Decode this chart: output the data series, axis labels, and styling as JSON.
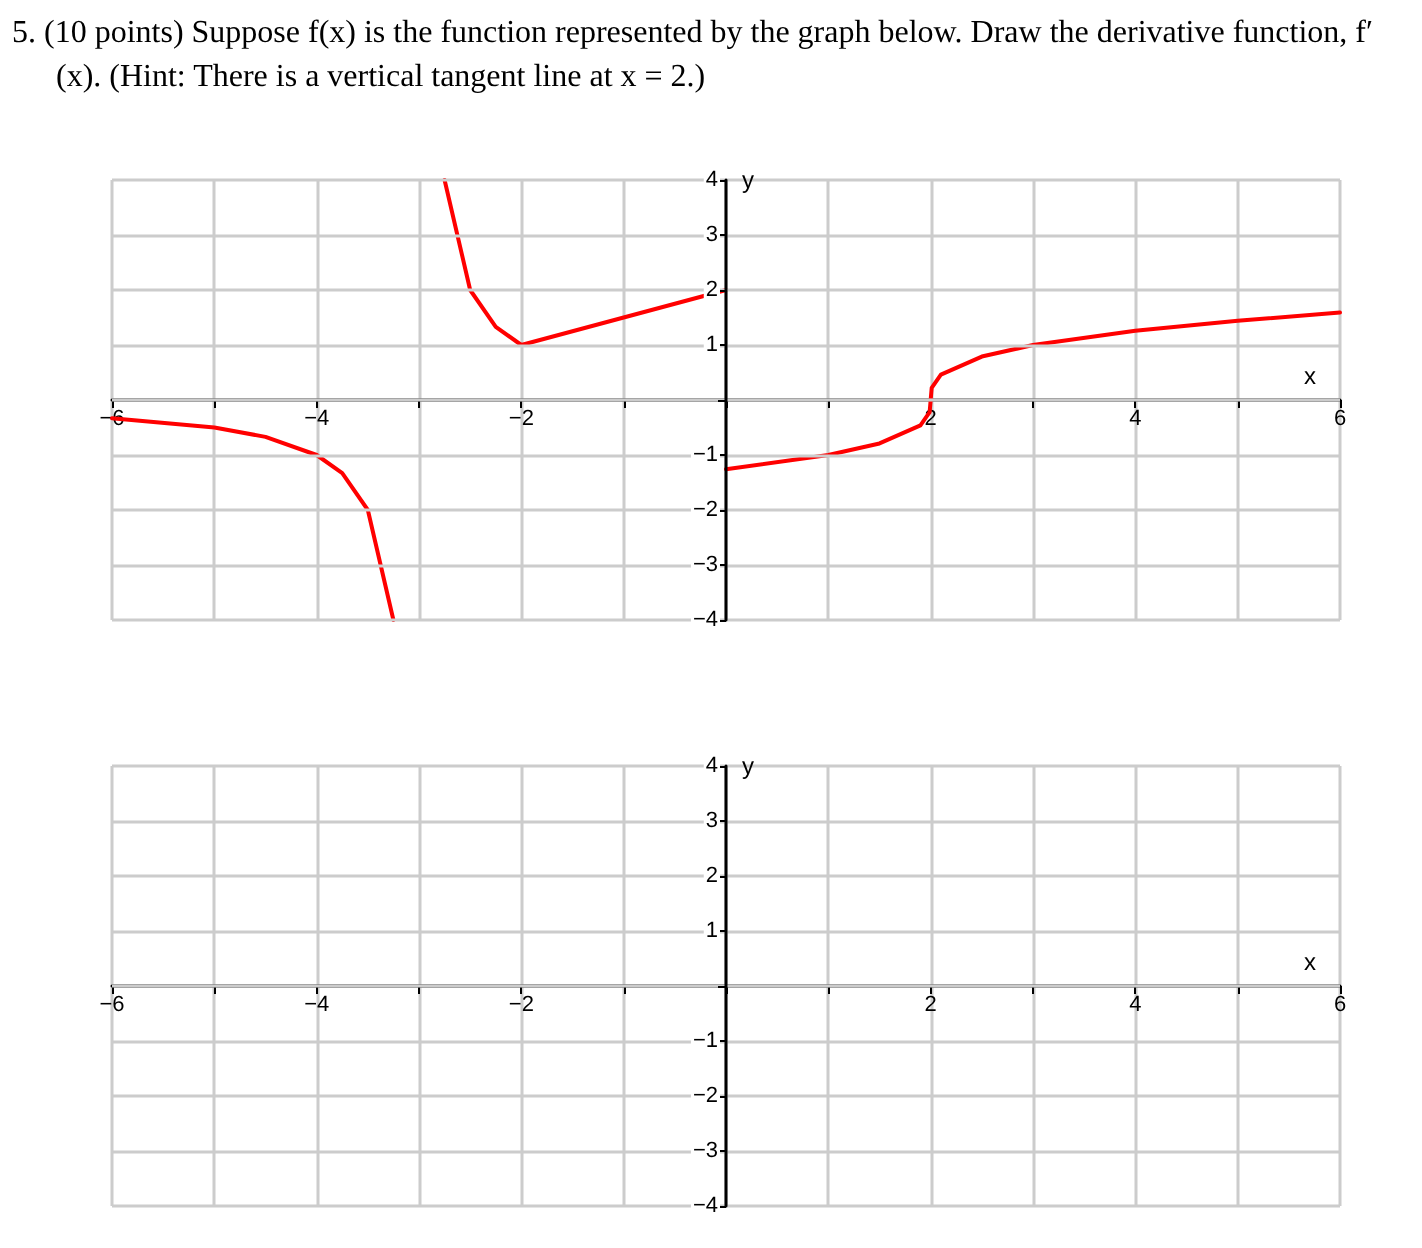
{
  "chart_data": [
    {
      "type": "line",
      "title": "5. (10 points) Suppose f(x) is the function represented by the graph below. Draw the derivative function, f′(x). (Hint: There is a vertical tangent line at x = 2.)",
      "xlabel": "x",
      "ylabel": "y",
      "xlim": [
        -6,
        6
      ],
      "ylim": [
        -4,
        4
      ],
      "xticks": [
        {
          "value": -6,
          "label": "−6"
        },
        {
          "value": -5,
          "label": null
        },
        {
          "value": -4,
          "label": "−4"
        },
        {
          "value": -3,
          "label": null
        },
        {
          "value": -2,
          "label": "−2"
        },
        {
          "value": -1,
          "label": null
        },
        {
          "value": 0,
          "label": null
        },
        {
          "value": 1,
          "label": null
        },
        {
          "value": 2,
          "label": "2"
        },
        {
          "value": 3,
          "label": null
        },
        {
          "value": 4,
          "label": "4"
        },
        {
          "value": 5,
          "label": null
        },
        {
          "value": 6,
          "label": "6"
        }
      ],
      "yticks": [
        {
          "value": -4,
          "label": "−4"
        },
        {
          "value": -3,
          "label": "−3"
        },
        {
          "value": -2,
          "label": "−2"
        },
        {
          "value": -1,
          "label": "−1"
        },
        {
          "value": 0,
          "label": null
        },
        1,
        2,
        3,
        4
      ],
      "grid": true,
      "marker": "none",
      "line_style": "solid",
      "series": [
        {
          "color": "#ff0000",
          "x": [
            -6,
            -5,
            -4.5,
            -4,
            -3.75,
            -3.5,
            -3.25
          ],
          "values": [
            -0.33,
            -0.5,
            -0.67,
            -1,
            -1.33,
            -2,
            -4
          ]
        },
        {
          "color": "#ff0000",
          "x": [
            -2.75,
            -2.5,
            -2.25,
            -2
          ],
          "values": [
            4,
            2,
            1.33,
            1
          ]
        },
        {
          "color": "#ff0000",
          "x": [
            -2,
            0
          ],
          "values": [
            1,
            2
          ]
        },
        {
          "color": "#ff0000",
          "x": [
            0,
            1,
            1.5,
            1.9,
            1.99,
            2,
            2.01,
            2.1,
            2.5,
            3,
            4,
            5,
            6
          ],
          "values": [
            -1.26,
            -1,
            -0.79,
            -0.46,
            -0.22,
            0,
            0.22,
            0.46,
            0.79,
            1,
            1.26,
            1.44,
            1.59
          ]
        }
      ]
    },
    {
      "type": "line",
      "xlabel": "x",
      "ylabel": "y",
      "xlim": [
        -6,
        6
      ],
      "ylim": [
        -4,
        4
      ],
      "xticks": [
        {
          "value": -6,
          "label": "−6"
        },
        {
          "value": -5,
          "label": null
        },
        {
          "value": -4,
          "label": "−4"
        },
        {
          "value": -3,
          "label": null
        },
        {
          "value": -2,
          "label": "−2"
        },
        {
          "value": -1,
          "label": null
        },
        {
          "value": 0,
          "label": null
        },
        {
          "value": 1,
          "label": null
        },
        {
          "value": 2,
          "label": "2"
        },
        {
          "value": 3,
          "label": null
        },
        {
          "value": 4,
          "label": "4"
        },
        {
          "value": 5,
          "label": null
        },
        {
          "value": 6,
          "label": "6"
        }
      ],
      "yticks": [
        {
          "value": -4,
          "label": "−4"
        },
        {
          "value": -3,
          "label": "−3"
        },
        {
          "value": -2,
          "label": "−2"
        },
        {
          "value": -1,
          "label": "−1"
        },
        {
          "value": 0,
          "label": null
        },
        1,
        2,
        3,
        4
      ],
      "grid": true
    }
  ]
}
